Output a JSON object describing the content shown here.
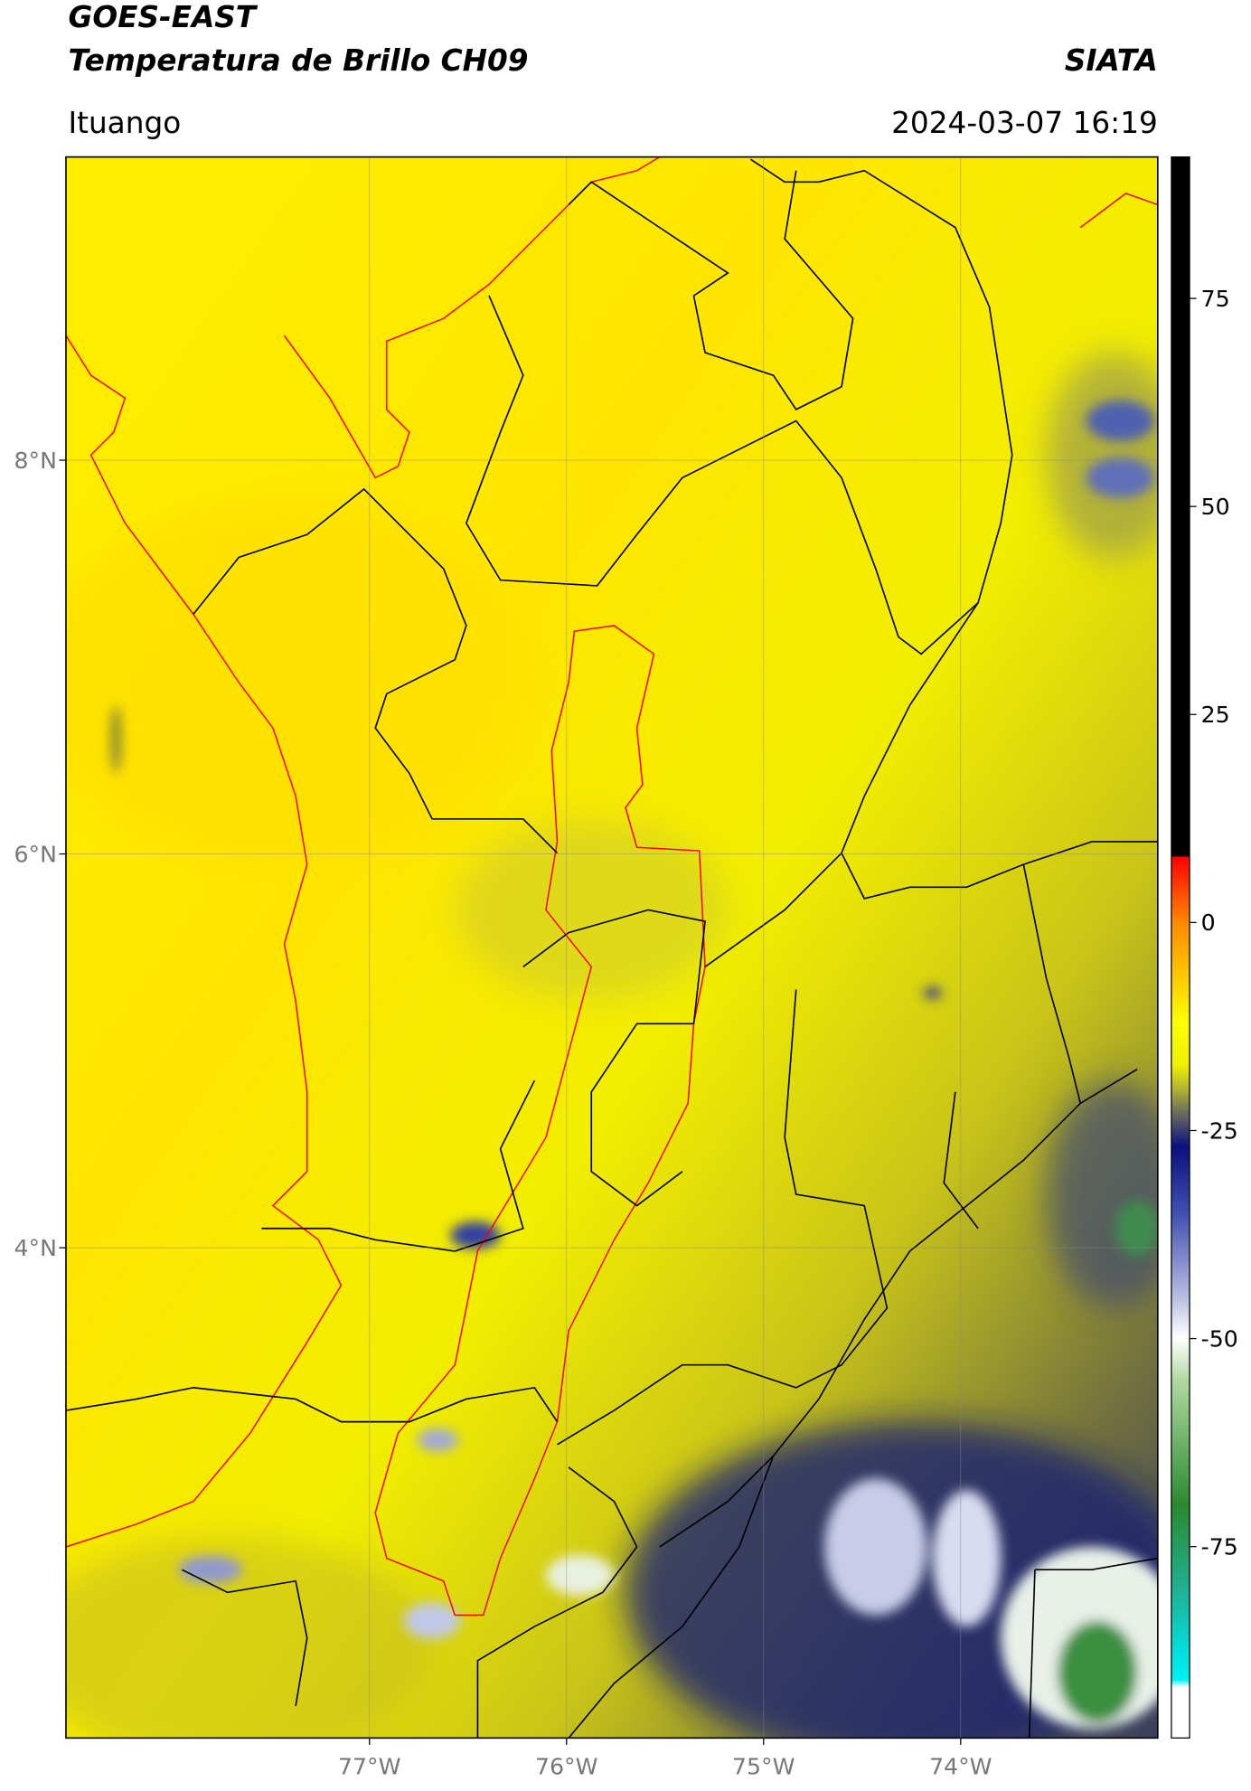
{
  "header": {
    "title": "GOES-EAST",
    "subtitle": "Temperatura de Brillo CH09",
    "source": "SIATA",
    "location": "Ituango",
    "datetime": "2024-03-07 16:19"
  },
  "map": {
    "xlim": [
      -78.54,
      -73.0
    ],
    "ylim": [
      1.51,
      9.54
    ],
    "xticks": [
      {
        "value": -77,
        "label": "77°W"
      },
      {
        "value": -76,
        "label": "76°W"
      },
      {
        "value": -75,
        "label": "75°W"
      },
      {
        "value": -74,
        "label": "74°W"
      }
    ],
    "yticks": [
      {
        "value": 8,
        "label": "8°N"
      },
      {
        "value": 6,
        "label": "6°N"
      },
      {
        "value": 4,
        "label": "4°N"
      }
    ],
    "grid": true
  },
  "colorbar": {
    "range": [
      -98,
      92
    ],
    "ticks": [
      75,
      50,
      25,
      0,
      -25,
      -50,
      -75
    ]
  }
}
